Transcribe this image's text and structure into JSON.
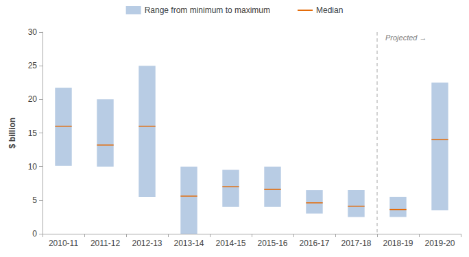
{
  "chart_data": {
    "type": "range_bar",
    "categories": [
      "2010-11",
      "2011-12",
      "2012-13",
      "2013-14",
      "2014-15",
      "2015-16",
      "2016-17",
      "2017-18",
      "2018-19",
      "2019-20"
    ],
    "y_label": "$ billion",
    "ylim": [
      0,
      30
    ],
    "yticks": [
      0,
      5,
      10,
      15,
      20,
      25,
      30
    ],
    "grid": false,
    "legend": "top",
    "series": [
      {
        "name": "Range from minimum to maximum",
        "color": "#b8cce4",
        "min": [
          10.1,
          10,
          5.5,
          0,
          4,
          4,
          3,
          2.5,
          2.5,
          3.5
        ],
        "max": [
          21.7,
          20,
          25,
          10,
          9.5,
          10,
          6.5,
          6.5,
          5.5,
          22.5
        ]
      },
      {
        "name": "Median",
        "color": "#e46c0a",
        "values": [
          16,
          13.2,
          16,
          5.6,
          7,
          6.6,
          4.6,
          4.1,
          3.6,
          14
        ]
      }
    ],
    "annotation": {
      "text": "Projected →",
      "from": "2018-19"
    }
  }
}
